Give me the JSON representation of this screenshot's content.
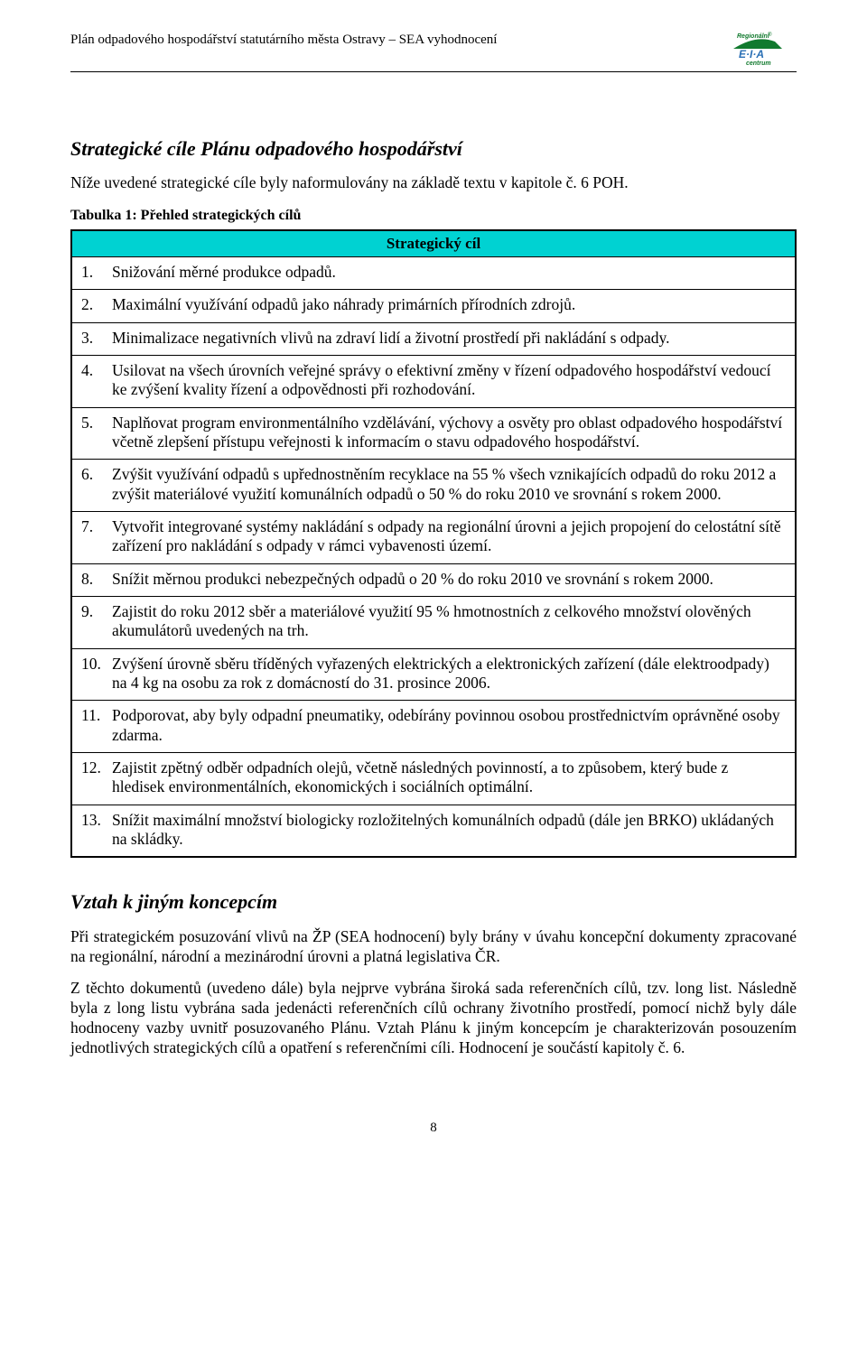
{
  "header": {
    "title": "Plán odpadového hospodářství statutárního města Ostravy – SEA vyhodnocení",
    "logo_text_top": "Regionální",
    "logo_text_bottom": "centrum",
    "logo_swoosh": "E·I·A"
  },
  "section1_title": "Strategické cíle Plánu odpadového hospodářství",
  "section1_lead": "Níže uvedené strategické cíle byly naformulovány na základě textu v kapitole č. 6 POH.",
  "table_caption": "Tabulka 1: Přehled strategických cílů",
  "table_header": "Strategický cíl",
  "cile": [
    {
      "n": "1.",
      "t": "Snižování měrné produkce odpadů."
    },
    {
      "n": "2.",
      "t": "Maximální využívání odpadů jako náhrady primárních přírodních zdrojů."
    },
    {
      "n": "3.",
      "t": "Minimalizace negativních vlivů na zdraví lidí a životní prostředí při nakládání s odpady."
    },
    {
      "n": "4.",
      "t": "Usilovat na všech úrovních veřejné správy o efektivní změny v řízení odpadového hospodářství vedoucí ke zvýšení kvality řízení a odpovědnosti při rozhodování."
    },
    {
      "n": "5.",
      "t": "Naplňovat program environmentálního vzdělávání, výchovy a osvěty pro oblast odpadového hospodářství včetně zlepšení přístupu veřejnosti k informacím o stavu odpadového hospodářství."
    },
    {
      "n": "6.",
      "t": "Zvýšit využívání odpadů s upřednostněním recyklace na 55 % všech vznikajících odpadů do roku 2012 a zvýšit materiálové využití komunálních odpadů o 50 % do roku 2010 ve srovnání s rokem 2000."
    },
    {
      "n": "7.",
      "t": "Vytvořit integrované systémy nakládání s odpady na regionální úrovni a jejich propojení do celostátní sítě zařízení pro nakládání s odpady v rámci vybavenosti území."
    },
    {
      "n": "8.",
      "t": "Snížit měrnou produkci nebezpečných odpadů o 20 % do roku 2010 ve srovnání s rokem 2000."
    },
    {
      "n": "9.",
      "t": "Zajistit do roku 2012 sběr a materiálové využití 95 % hmotnostních z celkového množství olověných akumulátorů uvedených na trh."
    },
    {
      "n": "10.",
      "t": "Zvýšení úrovně sběru tříděných vyřazených elektrických a elektronických zařízení (dále elektroodpady) na 4 kg na osobu za rok z domácností do 31. prosince 2006."
    },
    {
      "n": "11.",
      "t": "Podporovat, aby byly odpadní pneumatiky, odebírány povinnou osobou prostřednictvím oprávněné osoby zdarma."
    },
    {
      "n": "12.",
      "t": "Zajistit zpětný odběr odpadních olejů, včetně následných povinností, a to způsobem, který bude z hledisek environmentálních, ekonomických i sociálních optimální."
    },
    {
      "n": "13.",
      "t": "Snížit maximální množství biologicky rozložitelných komunálních odpadů (dále jen BRKO) ukládaných na skládky."
    }
  ],
  "section2_title": "Vztah k jiným koncepcím",
  "section2_p1": "Při strategickém posuzování vlivů na ŽP (SEA hodnocení) byly brány v úvahu koncepční dokumenty zpracované na regionální, národní a mezinárodní úrovni a platná legislativa ČR.",
  "section2_p2": "Z těchto dokumentů (uvedeno dále) byla nejprve vybrána široká sada referenčních cílů, tzv. long list. Následně byla z long listu vybrána sada jedenácti referenčních cílů ochrany životního prostředí, pomocí nichž byly dále hodnoceny vazby uvnitř posuzovaného Plánu. Vztah Plánu k jiným koncepcím je charakterizován posouzením jednotlivých strategických cílů a opatření s referenčními cíli. Hodnocení je součástí kapitoly č. 6.",
  "page_number": "8",
  "colors": {
    "header_bg": "#00d2d2",
    "logo_green": "#117a2e",
    "logo_blue": "#2a6fb5"
  }
}
